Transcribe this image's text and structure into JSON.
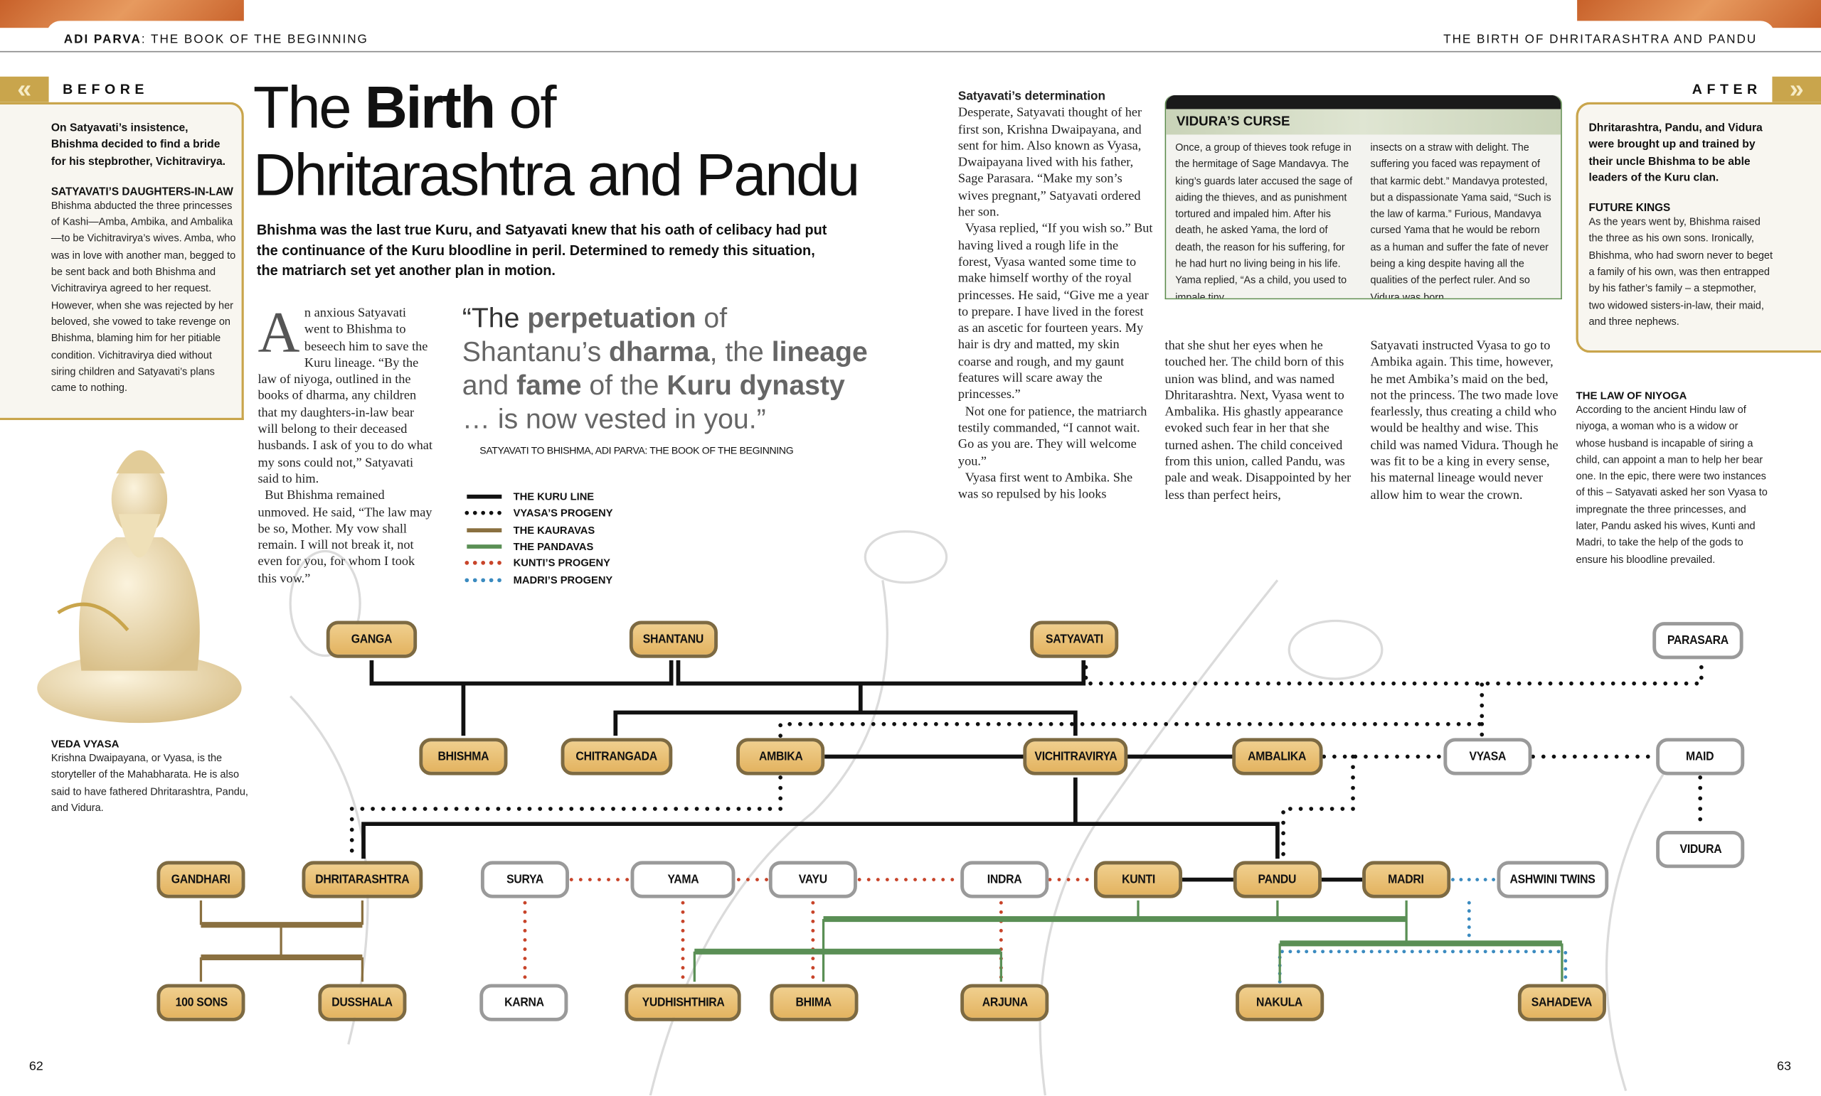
{
  "header": {
    "left_bold": "ADI PARVA",
    "left_rest": ": THE BOOK OF THE BEGINNING",
    "right": "THE BIRTH OF DHRITARASHTRA AND PANDU"
  },
  "before": {
    "label": "BEFORE",
    "lead": "On Satyavati’s insistence, Bhishma decided to find a bride for his stepbrother, Vichitravirya.",
    "heading": "SATYAVATI’S DAUGHTERS-IN-LAW",
    "body": "Bhishma abducted the three princesses of Kashi—Amba, Ambika, and Ambalika—to be Vichitravirya’s wives. Amba, who was in love with another man, begged to be sent back and both Bhishma and Vichitravirya agreed to her request. However, when she was rejected by her beloved, she vowed to take revenge on Bhishma, blaming him for her pitiable condition. Vichitravirya died without siring children and Satyavati’s plans came to nothing."
  },
  "after": {
    "label": "AFTER",
    "lead": "Dhritarashtra, Pandu, and Vidura were brought up and trained by their uncle Bhishma to be able leaders of the Kuru clan.",
    "heading": "FUTURE KINGS",
    "body": "As the years went by, Bhishma raised the three as his own sons. Ironically, Bhishma, who had sworn never to beget a family of his own, was then entrapped by his father’s family – a stepmother, two widowed sisters-in-law, their maid, and three nephews."
  },
  "niyoga": {
    "heading": "THE LAW OF NIYOGA",
    "body": "According to the ancient Hindu law of niyoga, a woman who is a widow or whose husband is incapable of siring a child, can appoint a man to help her bear one. In the epic, there were two instances of this – Satyavati asked her son Vyasa to impregnate the three princesses, and later, Pandu asked his wives, Kunti and Madri, to take the help of the gods to ensure his bloodline prevailed."
  },
  "title": {
    "pre": "The ",
    "bold": "Birth",
    "post": " of",
    "line2": "Dhritarashtra and Pandu"
  },
  "intro": "Bhishma was the last true Kuru, and Satyavati knew that his oath of celibacy had put the continuance of the Kuru bloodline in peril. Determined to remedy this situation, the matriarch set yet another plan in motion.",
  "col1": {
    "dropcap": "A",
    "p1": "n anxious Satyavati went to Bhishma to beseech him to save the Kuru lineage. “By the law of niyoga, outlined in the books of dharma, any children that my daughters-in-law bear will belong to their deceased husbands. I ask of you to do what my sons could not,” Satyavati said to him.",
    "p2": "But Bhishma remained unmoved. He said, “The law may be so, Mother. My vow shall remain. I will not break it, not even for you, for whom I took this vow.”"
  },
  "quote": {
    "parts": [
      {
        "text": "“The ",
        "bold": false
      },
      {
        "text": "perpetuation",
        "bold": true
      },
      {
        "text": " of Shantanu’s ",
        "bold": false
      },
      {
        "text": "dharma",
        "bold": true
      },
      {
        "text": ", the ",
        "bold": false
      },
      {
        "text": "lineage",
        "bold": true
      },
      {
        "text": " and ",
        "bold": false
      },
      {
        "text": "fame",
        "bold": true
      },
      {
        "text": " of the ",
        "bold": false
      },
      {
        "text": "Kuru dynasty",
        "bold": true
      },
      {
        "text": " … is now vested in you.”",
        "bold": false
      }
    ],
    "attribution": "SATYAVATI TO BHISHMA, ADI PARVA: THE BOOK OF THE BEGINNING"
  },
  "legend": [
    {
      "label": "THE KURU LINE",
      "color": "#111111",
      "style": "solid"
    },
    {
      "label": "VYASA’S PROGENY",
      "color": "#111111",
      "style": "dotted"
    },
    {
      "label": "THE KAURAVAS",
      "color": "#8a7040",
      "style": "solid"
    },
    {
      "label": "THE PANDAVAS",
      "color": "#5a8f55",
      "style": "solid"
    },
    {
      "label": "KUNTI’S PROGENY",
      "color": "#c8442a",
      "style": "dotted"
    },
    {
      "label": "MADRI’S PROGENY",
      "color": "#3b8bc0",
      "style": "dotted"
    }
  ],
  "col2": {
    "heading": "Satyavati’s determination",
    "p1": "Desperate, Satyavati thought of her first son, Krishna Dwaipayana, and sent for him. Also known as Vyasa, Dwaipayana lived with his father, Sage Parasara. “Make my son’s wives pregnant,” Satyavati ordered her son.",
    "p2": "Vyasa replied, “If you wish so.” But having lived a rough life in the forest, Vyasa wanted some time to make himself worthy of the royal princesses. He said, “Give me a year to prepare. I have lived in the forest as an ascetic for fourteen years. My hair is dry and matted, my skin coarse and rough, and my gaunt features will scare away the princesses.”",
    "p3": "Not one for patience, the matriarch testily commanded, “I cannot wait. Go as you are. They will welcome you.”",
    "p4": "Vyasa first went to Ambika. She was so repulsed by his looks"
  },
  "col3": "that she shut her eyes when he touched her. The child born of this union was blind, and was named Dhritarashtra. Next, Vyasa went to Ambalika. His ghastly appearance evoked such fear in her that she turned ashen. The child conceived from this union, called Pandu, was pale and weak. Disappointed by her less than perfect heirs,",
  "col4": "Satyavati instructed Vyasa to go to Ambika again. This time, however, he met Ambika’s maid on the bed, not the princess. The two made love fearlessly, thus creating a child who would be healthy and wise. This child was named Vidura. Though he was fit to be a king in every sense, his maternal lineage would never allow him to wear the crown.",
  "vidura_curse": {
    "title": "VIDURA’S CURSE",
    "left": "Once, a group of thieves took refuge in the hermitage of Sage Mandavya. The king’s guards later accused the sage of aiding the thieves, and as punishment tortured and impaled him. After his death, he asked Yama, the lord of death, the reason for his suffering, for he had hurt no living being in his life. Yama replied, “As a child, you used to impale tiny",
    "right": "insects on a straw with delight. The suffering you faced was repayment of that karmic debt.” Mandavya protested, but a dispassionate Yama said, “Such is the law of karma.” Furious, Mandavya cursed Yama that he would be reborn as a human and suffer the fate of never being a king despite having all the qualities of the perfect ruler. And so Vidura was born."
  },
  "caption": {
    "heading": "VEDA VYASA",
    "body": "Krishna Dwaipayana, or Vyasa, is the storyteller of the Mahabharata. He is also said to have fathered Dhritarashtra, Pandu, and Vidura."
  },
  "tree_nodes": [
    {
      "id": "ganga",
      "label": "GANGA",
      "kind": "family"
    },
    {
      "id": "shantanu",
      "label": "SHANTANU",
      "kind": "family"
    },
    {
      "id": "satyavati",
      "label": "SATYAVATI",
      "kind": "family"
    },
    {
      "id": "parasara",
      "label": "PARASARA",
      "kind": "other"
    },
    {
      "id": "bhishma",
      "label": "BHISHMA",
      "kind": "family"
    },
    {
      "id": "chitrangada",
      "label": "CHITRANGADA",
      "kind": "family"
    },
    {
      "id": "ambika",
      "label": "AMBIKA",
      "kind": "family"
    },
    {
      "id": "vichitravirya",
      "label": "VICHITRAVIRYA",
      "kind": "family"
    },
    {
      "id": "ambalika",
      "label": "AMBALIKA",
      "kind": "family"
    },
    {
      "id": "vyasa",
      "label": "VYASA",
      "kind": "other"
    },
    {
      "id": "maid",
      "label": "MAID",
      "kind": "other"
    },
    {
      "id": "vidura",
      "label": "VIDURA",
      "kind": "other"
    },
    {
      "id": "gandhari",
      "label": "GANDHARI",
      "kind": "family"
    },
    {
      "id": "dhritarashtra",
      "label": "DHRITARASHTRA",
      "kind": "family"
    },
    {
      "id": "surya",
      "label": "SURYA",
      "kind": "other"
    },
    {
      "id": "yama",
      "label": "YAMA",
      "kind": "other"
    },
    {
      "id": "vayu",
      "label": "VAYU",
      "kind": "other"
    },
    {
      "id": "indra",
      "label": "INDRA",
      "kind": "other"
    },
    {
      "id": "kunti",
      "label": "KUNTI",
      "kind": "family"
    },
    {
      "id": "pandu",
      "label": "PANDU",
      "kind": "family"
    },
    {
      "id": "madri",
      "label": "MADRI",
      "kind": "family"
    },
    {
      "id": "ashwini",
      "label": "ASHWINI TWINS",
      "kind": "other"
    },
    {
      "id": "sons100",
      "label": "100 SONS",
      "kind": "family"
    },
    {
      "id": "dusshala",
      "label": "DUSSHALA",
      "kind": "family"
    },
    {
      "id": "karna",
      "label": "KARNA",
      "kind": "other"
    },
    {
      "id": "yudhishthira",
      "label": "YUDHISHTHIRA",
      "kind": "family"
    },
    {
      "id": "bhima",
      "label": "BHIMA",
      "kind": "family"
    },
    {
      "id": "arjuna",
      "label": "ARJUNA",
      "kind": "family"
    },
    {
      "id": "nakula",
      "label": "NAKULA",
      "kind": "family"
    },
    {
      "id": "sahadeva",
      "label": "SAHADEVA",
      "kind": "family"
    }
  ],
  "page_numbers": {
    "left": "62",
    "right": "63"
  }
}
